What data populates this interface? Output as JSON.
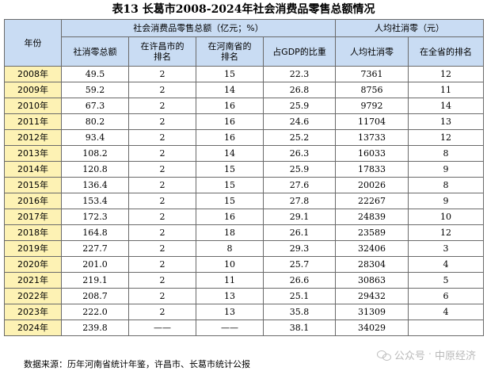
{
  "title": "表13 长葛市2008-2024年社会消费品零售总额情况",
  "header": {
    "year_label": "年份",
    "group_retail": "社会消费品零售总额（亿元；%）",
    "group_percapita": "人均社消零（元）",
    "col_total": "社消零总额",
    "col_rank_city": "在许昌市的\n排名",
    "col_rank_province": "在河南省的\n排名",
    "col_gdp_share": "占GDP的比重",
    "col_percapita": "人均社消零",
    "col_percapita_rank": "在全省的排名"
  },
  "rows": [
    {
      "year": "2008年",
      "total": "49.5",
      "rank_city": "2",
      "rank_province": "15",
      "gdp_share": "22.3",
      "percapita": "7361",
      "percapita_rank": "12"
    },
    {
      "year": "2009年",
      "total": "59.2",
      "rank_city": "2",
      "rank_province": "14",
      "gdp_share": "26.8",
      "percapita": "8756",
      "percapita_rank": "11"
    },
    {
      "year": "2010年",
      "total": "67.3",
      "rank_city": "2",
      "rank_province": "16",
      "gdp_share": "25.9",
      "percapita": "9792",
      "percapita_rank": "14"
    },
    {
      "year": "2011年",
      "total": "80.2",
      "rank_city": "2",
      "rank_province": "16",
      "gdp_share": "24.6",
      "percapita": "11704",
      "percapita_rank": "13"
    },
    {
      "year": "2012年",
      "total": "93.4",
      "rank_city": "2",
      "rank_province": "16",
      "gdp_share": "25.2",
      "percapita": "13733",
      "percapita_rank": "12"
    },
    {
      "year": "2013年",
      "total": "108.2",
      "rank_city": "2",
      "rank_province": "14",
      "gdp_share": "26.3",
      "percapita": "16033",
      "percapita_rank": "8"
    },
    {
      "year": "2014年",
      "total": "120.8",
      "rank_city": "2",
      "rank_province": "15",
      "gdp_share": "25.9",
      "percapita": "17833",
      "percapita_rank": "9"
    },
    {
      "year": "2015年",
      "total": "136.4",
      "rank_city": "2",
      "rank_province": "15",
      "gdp_share": "27.6",
      "percapita": "20026",
      "percapita_rank": "8"
    },
    {
      "year": "2016年",
      "total": "153.4",
      "rank_city": "2",
      "rank_province": "15",
      "gdp_share": "27.8",
      "percapita": "22267",
      "percapita_rank": "9"
    },
    {
      "year": "2017年",
      "total": "172.3",
      "rank_city": "2",
      "rank_province": "16",
      "gdp_share": "29.1",
      "percapita": "24839",
      "percapita_rank": "10"
    },
    {
      "year": "2018年",
      "total": "164.8",
      "rank_city": "2",
      "rank_province": "18",
      "gdp_share": "26.1",
      "percapita": "23589",
      "percapita_rank": "12"
    },
    {
      "year": "2019年",
      "total": "227.7",
      "rank_city": "2",
      "rank_province": "8",
      "gdp_share": "29.3",
      "percapita": "32406",
      "percapita_rank": "3"
    },
    {
      "year": "2020年",
      "total": "201.0",
      "rank_city": "2",
      "rank_province": "10",
      "gdp_share": "25.7",
      "percapita": "28304",
      "percapita_rank": "4"
    },
    {
      "year": "2021年",
      "total": "219.1",
      "rank_city": "2",
      "rank_province": "11",
      "gdp_share": "26.6",
      "percapita": "30863",
      "percapita_rank": "5"
    },
    {
      "year": "2022年",
      "total": "208.7",
      "rank_city": "2",
      "rank_province": "13",
      "gdp_share": "25.1",
      "percapita": "29432",
      "percapita_rank": "6"
    },
    {
      "year": "2023年",
      "total": "222.0",
      "rank_city": "2",
      "rank_province": "13",
      "gdp_share": "35.8",
      "percapita": "31309",
      "percapita_rank": "4"
    },
    {
      "year": "2024年",
      "total": "239.8",
      "rank_city": "——",
      "rank_province": "——",
      "gdp_share": "38.1",
      "percapita": "34029",
      "percapita_rank": ""
    }
  ],
  "source": "数据来源：历年河南省统计年鉴，许昌市、长葛市统计公报",
  "watermark": {
    "account": "公众号",
    "separator": "·",
    "name": "中原经济"
  }
}
